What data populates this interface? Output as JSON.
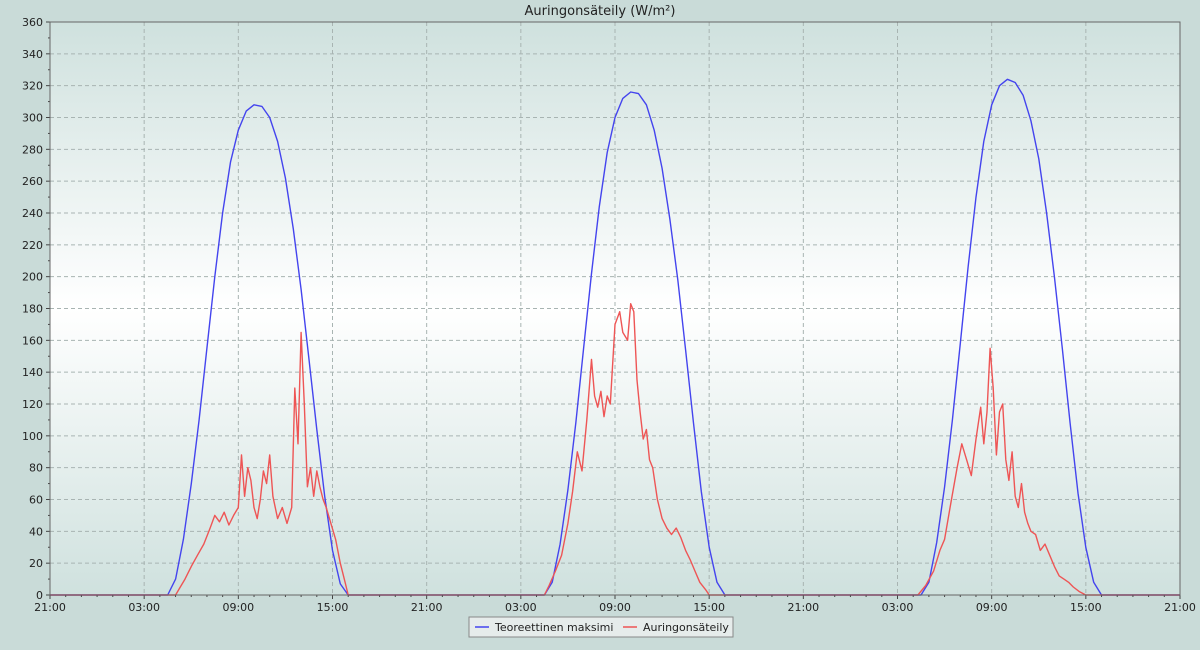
{
  "chart_data": {
    "type": "line",
    "title": "Auringonsäteily (W/m²)",
    "xlabel": "",
    "ylabel": "",
    "ylim": [
      0,
      360
    ],
    "y_ticks": [
      0,
      20,
      40,
      60,
      80,
      100,
      120,
      140,
      160,
      180,
      200,
      220,
      240,
      260,
      280,
      300,
      320,
      340,
      360
    ],
    "x_hours_range": [
      0,
      72
    ],
    "x_ticks": [
      {
        "hour": 0,
        "label": "21:00"
      },
      {
        "hour": 6,
        "label": "03:00"
      },
      {
        "hour": 12,
        "label": "09:00"
      },
      {
        "hour": 18,
        "label": "15:00"
      },
      {
        "hour": 24,
        "label": "21:00"
      },
      {
        "hour": 30,
        "label": "03:00"
      },
      {
        "hour": 36,
        "label": "09:00"
      },
      {
        "hour": 42,
        "label": "15:00"
      },
      {
        "hour": 48,
        "label": "21:00"
      },
      {
        "hour": 54,
        "label": "03:00"
      },
      {
        "hour": 60,
        "label": "09:00"
      },
      {
        "hour": 66,
        "label": "15:00"
      },
      {
        "hour": 72,
        "label": "21:00"
      }
    ],
    "grid": true,
    "legend_position": "bottom-center",
    "series": [
      {
        "name": "Teoreettinen maksimi",
        "color": "#4444ee",
        "points": [
          [
            0,
            0
          ],
          [
            7.5,
            0
          ],
          [
            8,
            10
          ],
          [
            8.5,
            35
          ],
          [
            9,
            70
          ],
          [
            9.5,
            110
          ],
          [
            10,
            155
          ],
          [
            10.5,
            200
          ],
          [
            11,
            240
          ],
          [
            11.5,
            272
          ],
          [
            12,
            292
          ],
          [
            12.5,
            304
          ],
          [
            13,
            308
          ],
          [
            13.5,
            307
          ],
          [
            14,
            300
          ],
          [
            14.5,
            285
          ],
          [
            15,
            262
          ],
          [
            15.5,
            230
          ],
          [
            16,
            192
          ],
          [
            16.5,
            148
          ],
          [
            17,
            104
          ],
          [
            17.5,
            62
          ],
          [
            18,
            28
          ],
          [
            18.5,
            7
          ],
          [
            19,
            0
          ],
          [
            31.5,
            0
          ],
          [
            32,
            8
          ],
          [
            32.5,
            32
          ],
          [
            33,
            66
          ],
          [
            33.5,
            108
          ],
          [
            34,
            155
          ],
          [
            34.5,
            202
          ],
          [
            35,
            244
          ],
          [
            35.5,
            278
          ],
          [
            36,
            300
          ],
          [
            36.5,
            312
          ],
          [
            37,
            316
          ],
          [
            37.5,
            315
          ],
          [
            38,
            308
          ],
          [
            38.5,
            292
          ],
          [
            39,
            268
          ],
          [
            39.5,
            236
          ],
          [
            40,
            198
          ],
          [
            40.5,
            154
          ],
          [
            41,
            108
          ],
          [
            41.5,
            65
          ],
          [
            42,
            30
          ],
          [
            42.5,
            8
          ],
          [
            43,
            0
          ],
          [
            55.5,
            0
          ],
          [
            56,
            8
          ],
          [
            56.5,
            33
          ],
          [
            57,
            68
          ],
          [
            57.5,
            110
          ],
          [
            58,
            158
          ],
          [
            58.5,
            206
          ],
          [
            59,
            250
          ],
          [
            59.5,
            285
          ],
          [
            60,
            308
          ],
          [
            60.5,
            320
          ],
          [
            61,
            324
          ],
          [
            61.5,
            322
          ],
          [
            62,
            314
          ],
          [
            62.5,
            298
          ],
          [
            63,
            274
          ],
          [
            63.5,
            240
          ],
          [
            64,
            200
          ],
          [
            64.5,
            155
          ],
          [
            65,
            108
          ],
          [
            65.5,
            64
          ],
          [
            66,
            30
          ],
          [
            66.5,
            8
          ],
          [
            67,
            0
          ],
          [
            72,
            0
          ]
        ]
      },
      {
        "name": "Auringonsäteily",
        "color": "#ee5555",
        "points": [
          [
            0,
            0
          ],
          [
            8,
            0
          ],
          [
            8.3,
            5
          ],
          [
            8.6,
            10
          ],
          [
            9,
            18
          ],
          [
            9.4,
            25
          ],
          [
            9.8,
            32
          ],
          [
            10.2,
            42
          ],
          [
            10.5,
            50
          ],
          [
            10.8,
            46
          ],
          [
            11.1,
            52
          ],
          [
            11.4,
            44
          ],
          [
            11.7,
            50
          ],
          [
            12,
            55
          ],
          [
            12.2,
            88
          ],
          [
            12.4,
            62
          ],
          [
            12.6,
            80
          ],
          [
            12.8,
            72
          ],
          [
            13,
            55
          ],
          [
            13.2,
            48
          ],
          [
            13.4,
            60
          ],
          [
            13.6,
            78
          ],
          [
            13.8,
            70
          ],
          [
            14,
            88
          ],
          [
            14.2,
            62
          ],
          [
            14.5,
            48
          ],
          [
            14.8,
            55
          ],
          [
            15.1,
            45
          ],
          [
            15.4,
            55
          ],
          [
            15.6,
            130
          ],
          [
            15.8,
            95
          ],
          [
            16,
            165
          ],
          [
            16.2,
            120
          ],
          [
            16.4,
            68
          ],
          [
            16.6,
            80
          ],
          [
            16.8,
            62
          ],
          [
            17,
            78
          ],
          [
            17.2,
            68
          ],
          [
            17.4,
            60
          ],
          [
            17.6,
            55
          ],
          [
            17.9,
            45
          ],
          [
            18.2,
            35
          ],
          [
            18.5,
            20
          ],
          [
            18.8,
            8
          ],
          [
            19,
            0
          ],
          [
            31.5,
            0
          ],
          [
            31.8,
            6
          ],
          [
            32.2,
            15
          ],
          [
            32.6,
            25
          ],
          [
            33,
            45
          ],
          [
            33.3,
            65
          ],
          [
            33.6,
            90
          ],
          [
            33.9,
            78
          ],
          [
            34.2,
            110
          ],
          [
            34.5,
            148
          ],
          [
            34.7,
            125
          ],
          [
            34.9,
            118
          ],
          [
            35.1,
            128
          ],
          [
            35.3,
            112
          ],
          [
            35.5,
            125
          ],
          [
            35.7,
            120
          ],
          [
            36,
            170
          ],
          [
            36.3,
            178
          ],
          [
            36.5,
            165
          ],
          [
            36.8,
            160
          ],
          [
            37,
            183
          ],
          [
            37.2,
            178
          ],
          [
            37.4,
            135
          ],
          [
            37.6,
            115
          ],
          [
            37.8,
            98
          ],
          [
            38,
            104
          ],
          [
            38.2,
            85
          ],
          [
            38.4,
            80
          ],
          [
            38.7,
            60
          ],
          [
            39,
            48
          ],
          [
            39.3,
            42
          ],
          [
            39.6,
            38
          ],
          [
            39.9,
            42
          ],
          [
            40.2,
            36
          ],
          [
            40.5,
            28
          ],
          [
            40.8,
            22
          ],
          [
            41.1,
            15
          ],
          [
            41.4,
            8
          ],
          [
            41.8,
            3
          ],
          [
            42,
            0
          ],
          [
            55.3,
            0
          ],
          [
            55.8,
            6
          ],
          [
            56.3,
            15
          ],
          [
            56.7,
            28
          ],
          [
            57,
            35
          ],
          [
            57.4,
            58
          ],
          [
            57.8,
            80
          ],
          [
            58.1,
            95
          ],
          [
            58.4,
            85
          ],
          [
            58.7,
            75
          ],
          [
            59,
            98
          ],
          [
            59.3,
            118
          ],
          [
            59.5,
            95
          ],
          [
            59.7,
            115
          ],
          [
            59.9,
            155
          ],
          [
            60.1,
            130
          ],
          [
            60.3,
            88
          ],
          [
            60.5,
            115
          ],
          [
            60.7,
            120
          ],
          [
            60.9,
            85
          ],
          [
            61.1,
            72
          ],
          [
            61.3,
            90
          ],
          [
            61.5,
            62
          ],
          [
            61.7,
            55
          ],
          [
            61.9,
            70
          ],
          [
            62.1,
            52
          ],
          [
            62.3,
            45
          ],
          [
            62.5,
            40
          ],
          [
            62.8,
            38
          ],
          [
            63.1,
            28
          ],
          [
            63.4,
            32
          ],
          [
            63.7,
            25
          ],
          [
            64,
            18
          ],
          [
            64.3,
            12
          ],
          [
            64.6,
            10
          ],
          [
            64.9,
            8
          ],
          [
            65.2,
            5
          ],
          [
            65.6,
            2
          ],
          [
            66,
            0
          ],
          [
            72,
            0
          ]
        ]
      }
    ]
  }
}
